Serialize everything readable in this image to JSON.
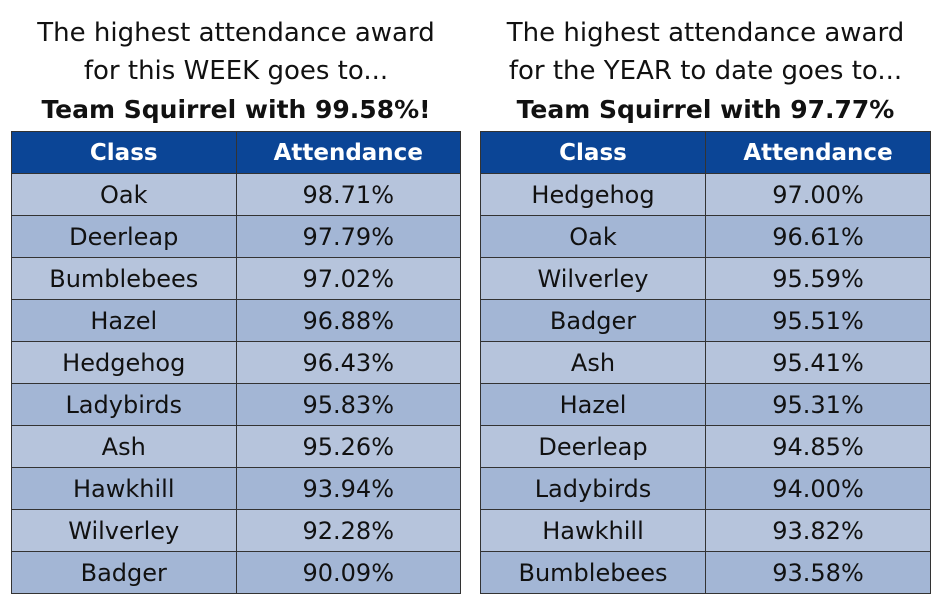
{
  "week": {
    "line1": "The highest attendance award",
    "line2": "for this WEEK goes to...",
    "winner": "Team Squirrel with 99.58%!",
    "headers": [
      "Class",
      "Attendance"
    ],
    "rows": [
      [
        "Oak",
        "98.71%"
      ],
      [
        "Deerleap",
        "97.79%"
      ],
      [
        "Bumblebees",
        "97.02%"
      ],
      [
        "Hazel",
        "96.88%"
      ],
      [
        "Hedgehog",
        "96.43%"
      ],
      [
        "Ladybirds",
        "95.83%"
      ],
      [
        "Ash",
        "95.26%"
      ],
      [
        "Hawkhill",
        "93.94%"
      ],
      [
        "Wilverley",
        "92.28%"
      ],
      [
        "Badger",
        "90.09%"
      ]
    ]
  },
  "year": {
    "line1": "The highest attendance award",
    "line2": "for the YEAR to date goes to...",
    "winner": "Team Squirrel with 97.77%",
    "headers": [
      "Class",
      "Attendance"
    ],
    "rows": [
      [
        "Hedgehog",
        "97.00%"
      ],
      [
        "Oak",
        "96.61%"
      ],
      [
        "Wilverley",
        "95.59%"
      ],
      [
        "Badger",
        "95.51%"
      ],
      [
        "Ash",
        "95.41%"
      ],
      [
        "Hazel",
        "95.31%"
      ],
      [
        "Deerleap",
        "94.85%"
      ],
      [
        "Ladybirds",
        "94.00%"
      ],
      [
        "Hawkhill",
        "93.82%"
      ],
      [
        "Bumblebees",
        "93.58%"
      ]
    ]
  },
  "colors": {
    "header_bg": "#0b4596",
    "row_light": "#b6c4dc",
    "row_dark": "#a3b6d5"
  }
}
